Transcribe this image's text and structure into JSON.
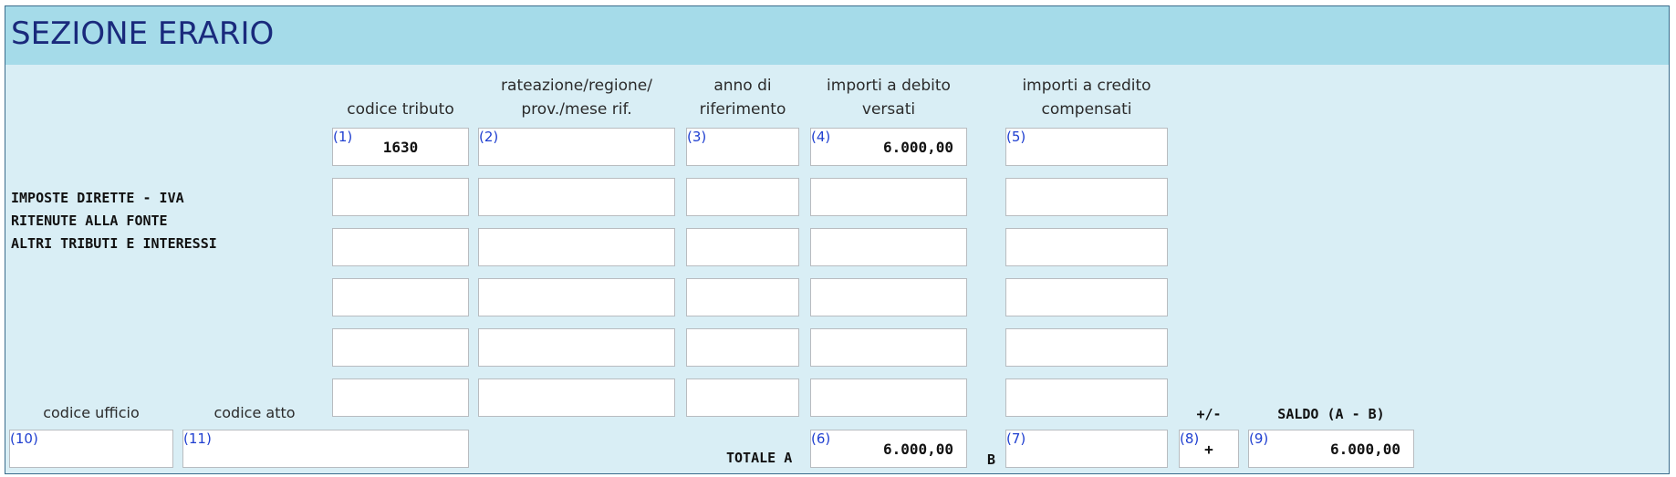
{
  "section": {
    "title": "SEZIONE ERARIO"
  },
  "columns": {
    "codice_tributo": "codice tributo",
    "rateazione_l1": "rateazione/regione/",
    "rateazione_l2": "prov./mese rif.",
    "anno_l1": "anno di",
    "anno_l2": "riferimento",
    "debito_l1": "importi a debito",
    "debito_l2": "versati",
    "credito_l1": "importi a credito",
    "credito_l2": "compensati"
  },
  "side_labels": [
    "IMPOSTE DIRETTE - IVA",
    "RITENUTE ALLA FONTE",
    "ALTRI TRIBUTI E INTERESSI"
  ],
  "field_numbers": {
    "n1": "(1)",
    "n2": "(2)",
    "n3": "(3)",
    "n4": "(4)",
    "n5": "(5)",
    "n6": "(6)",
    "n7": "(7)",
    "n8": "(8)",
    "n9": "(9)",
    "n10": "(10)",
    "n11": "(11)"
  },
  "rows": [
    {
      "codice_tributo": "1630",
      "rateazione": "",
      "anno": "",
      "debito": "6.000,00",
      "credito": ""
    },
    {
      "codice_tributo": "",
      "rateazione": "",
      "anno": "",
      "debito": "",
      "credito": ""
    },
    {
      "codice_tributo": "",
      "rateazione": "",
      "anno": "",
      "debito": "",
      "credito": ""
    },
    {
      "codice_tributo": "",
      "rateazione": "",
      "anno": "",
      "debito": "",
      "credito": ""
    },
    {
      "codice_tributo": "",
      "rateazione": "",
      "anno": "",
      "debito": "",
      "credito": ""
    },
    {
      "codice_tributo": "",
      "rateazione": "",
      "anno": "",
      "debito": "",
      "credito": ""
    }
  ],
  "footer": {
    "codice_ufficio_label": "codice ufficio",
    "codice_atto_label": "codice atto",
    "codice_ufficio": "",
    "codice_atto": "",
    "totale_a_label": "TOTALE A",
    "totale_a": "6.000,00",
    "b_label": "B",
    "totale_b": "",
    "sign_label": "+/-",
    "sign": "+",
    "saldo_label": "SALDO (A - B)",
    "saldo": "6.000,00"
  }
}
